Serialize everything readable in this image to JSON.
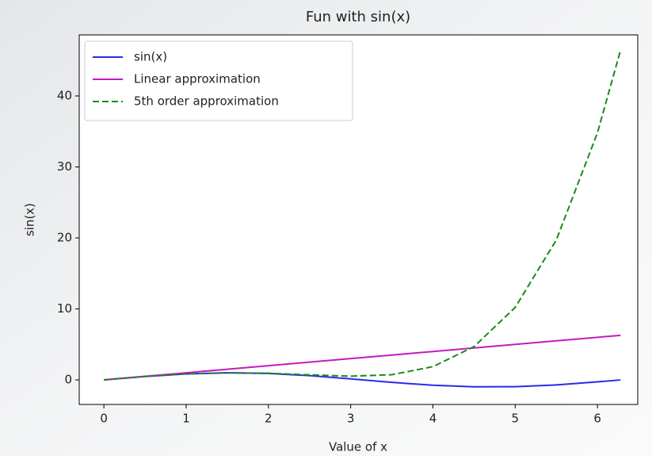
{
  "chart_data": {
    "type": "line",
    "title": "Fun with sin(x)",
    "x_label": "Value of x",
    "y_label": "sin(x)",
    "x": [
      0,
      0.5,
      1,
      1.5,
      2,
      2.5,
      3,
      3.5,
      4,
      4.5,
      5,
      5.5,
      6,
      6.28
    ],
    "series": [
      {
        "name": "sin(x)",
        "color": "#2a2aee",
        "linestyle": "solid",
        "values": [
          0,
          0.479,
          0.841,
          0.997,
          0.909,
          0.598,
          0.141,
          -0.351,
          -0.757,
          -0.978,
          -0.959,
          -0.706,
          -0.279,
          -0.003
        ]
      },
      {
        "name": "Linear approximation",
        "color": "#c21bc2",
        "linestyle": "solid",
        "values": [
          0,
          0.5,
          1,
          1.5,
          2,
          2.5,
          3,
          3.5,
          4,
          4.5,
          5,
          5.5,
          6,
          6.28
        ]
      },
      {
        "name": "5th order approximation",
        "color": "#1a8a1a",
        "linestyle": "dashed",
        "values": [
          0,
          0.479,
          0.842,
          1.001,
          0.933,
          0.71,
          0.525,
          0.731,
          1.867,
          4.69,
          10.208,
          19.71,
          34.8,
          46.4
        ]
      }
    ],
    "xlim": [
      -0.3,
      6.49
    ],
    "xticks": [
      0,
      1,
      2,
      3,
      4,
      5,
      6
    ],
    "ylim": [
      -3.46,
      48.6
    ],
    "yticks": [
      0,
      10,
      20,
      30,
      40
    ],
    "legend": "upper left",
    "grid": false
  }
}
